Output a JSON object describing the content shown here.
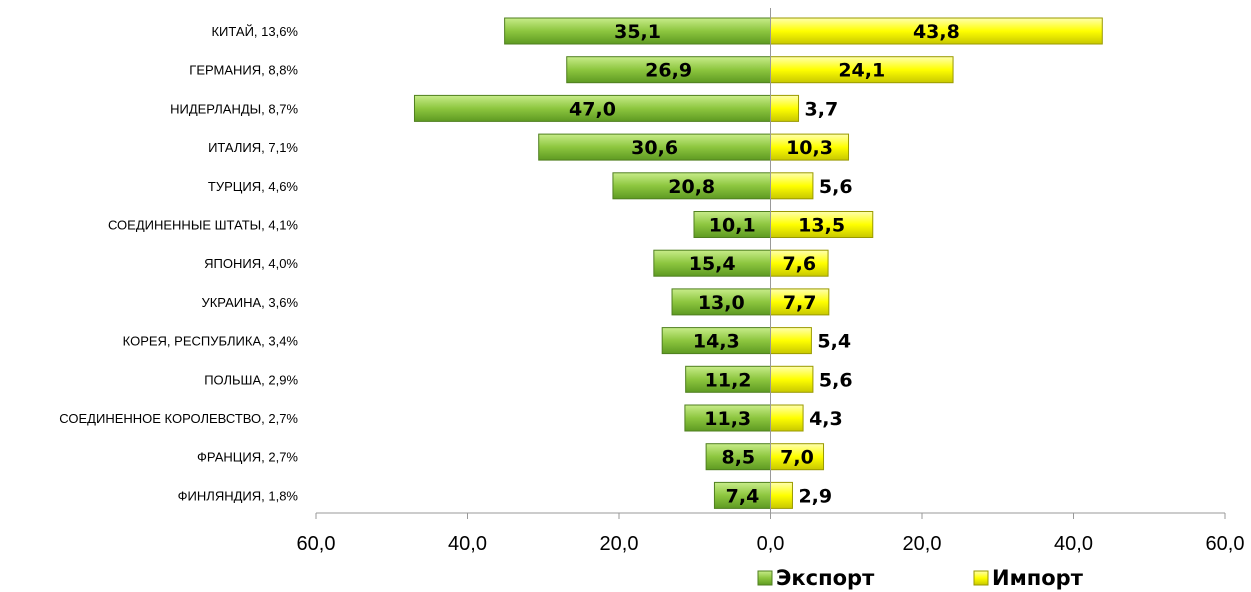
{
  "chart_data": {
    "type": "bar",
    "orientation": "horizontal",
    "layout": "diverging",
    "title": "",
    "xlabel": "",
    "ylabel": "",
    "xlim": [
      -60,
      60
    ],
    "x_ticks": [
      "60,0",
      "40,0",
      "20,0",
      "0,0",
      "20,0",
      "40,0",
      "60,0"
    ],
    "categories": [
      "КИТАЙ, 13,6%",
      "ГЕРМАНИЯ, 8,8%",
      "НИДЕРЛАНДЫ, 8,7%",
      "ИТАЛИЯ, 7,1%",
      "ТУРЦИЯ, 4,6%",
      "СОЕДИНЕННЫЕ ШТАТЫ, 4,1%",
      "ЯПОНИЯ, 4,0%",
      "УКРАИНА, 3,6%",
      "КОРЕЯ, РЕСПУБЛИКА, 3,4%",
      "ПОЛЬША, 2,9%",
      "СОЕДИНЕННОЕ КОРОЛЕВСТВО, 2,7%",
      "ФРАНЦИЯ, 2,7%",
      "ФИНЛЯНДИЯ, 1,8%"
    ],
    "series": [
      {
        "name": "Экспорт",
        "color": "#8dc63f",
        "values": [
          35.1,
          26.9,
          47.0,
          30.6,
          20.8,
          10.1,
          15.4,
          13.0,
          14.3,
          11.2,
          11.3,
          8.5,
          7.4
        ],
        "labels": [
          "35,1",
          "26,9",
          "47,0",
          "30,6",
          "20,8",
          "10,1",
          "15,4",
          "13,0",
          "14,3",
          "11,2",
          "11,3",
          "8,5",
          "7,4"
        ]
      },
      {
        "name": "Импорт",
        "color": "#ffff00",
        "values": [
          43.8,
          24.1,
          3.7,
          10.3,
          5.6,
          13.5,
          7.6,
          7.7,
          5.4,
          5.6,
          4.3,
          7.0,
          2.9
        ],
        "labels": [
          "43,8",
          "24,1",
          "3,7",
          "10,3",
          "5,6",
          "13,5",
          "7,6",
          "7,7",
          "5,4",
          "5,6",
          "4,3",
          "7,0",
          "2,9"
        ]
      }
    ],
    "legend_position": "bottom-right",
    "grid": false
  }
}
